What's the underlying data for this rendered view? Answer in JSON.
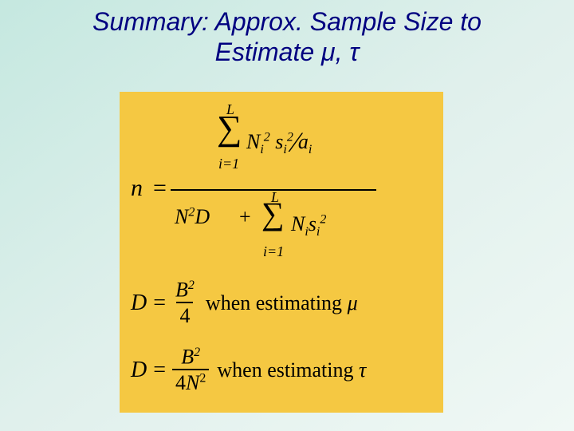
{
  "title_line1": "Summary: Approx. Sample Size to",
  "title_line2": "Estimate μ, τ",
  "eq1": {
    "lhs": "n",
    "equals": "=",
    "sum_upper": "L",
    "sum_lower": "i=1",
    "num_N": "N",
    "num_N_sub": "i",
    "num_N_sup": "2",
    "num_s": "s",
    "num_s_sub": "i",
    "num_s_sup": "2",
    "slash": "⁄",
    "num_a": "a",
    "num_a_sub": "i",
    "den_N": "N",
    "den_N_sup": "2",
    "den_D": "D",
    "plus": "+",
    "den_sum_upper": "L",
    "den_sum_lower": "i=1",
    "den_Ni": "N",
    "den_Ni_sub": "i",
    "den_s": "s",
    "den_s_sub": "i",
    "den_s_sup": "2"
  },
  "eq2": {
    "D": "D",
    "equals": "=",
    "num": "B",
    "num_sup": "2",
    "den": "4",
    "when": " when estimating ",
    "param": "μ"
  },
  "eq3": {
    "D": "D",
    "equals": "=",
    "num": "B",
    "num_sup": "2",
    "den_4": "4",
    "den_N": "N",
    "den_N_sup": "2",
    "when": " when estimating ",
    "param": "τ"
  },
  "sigma_glyph": "∑"
}
